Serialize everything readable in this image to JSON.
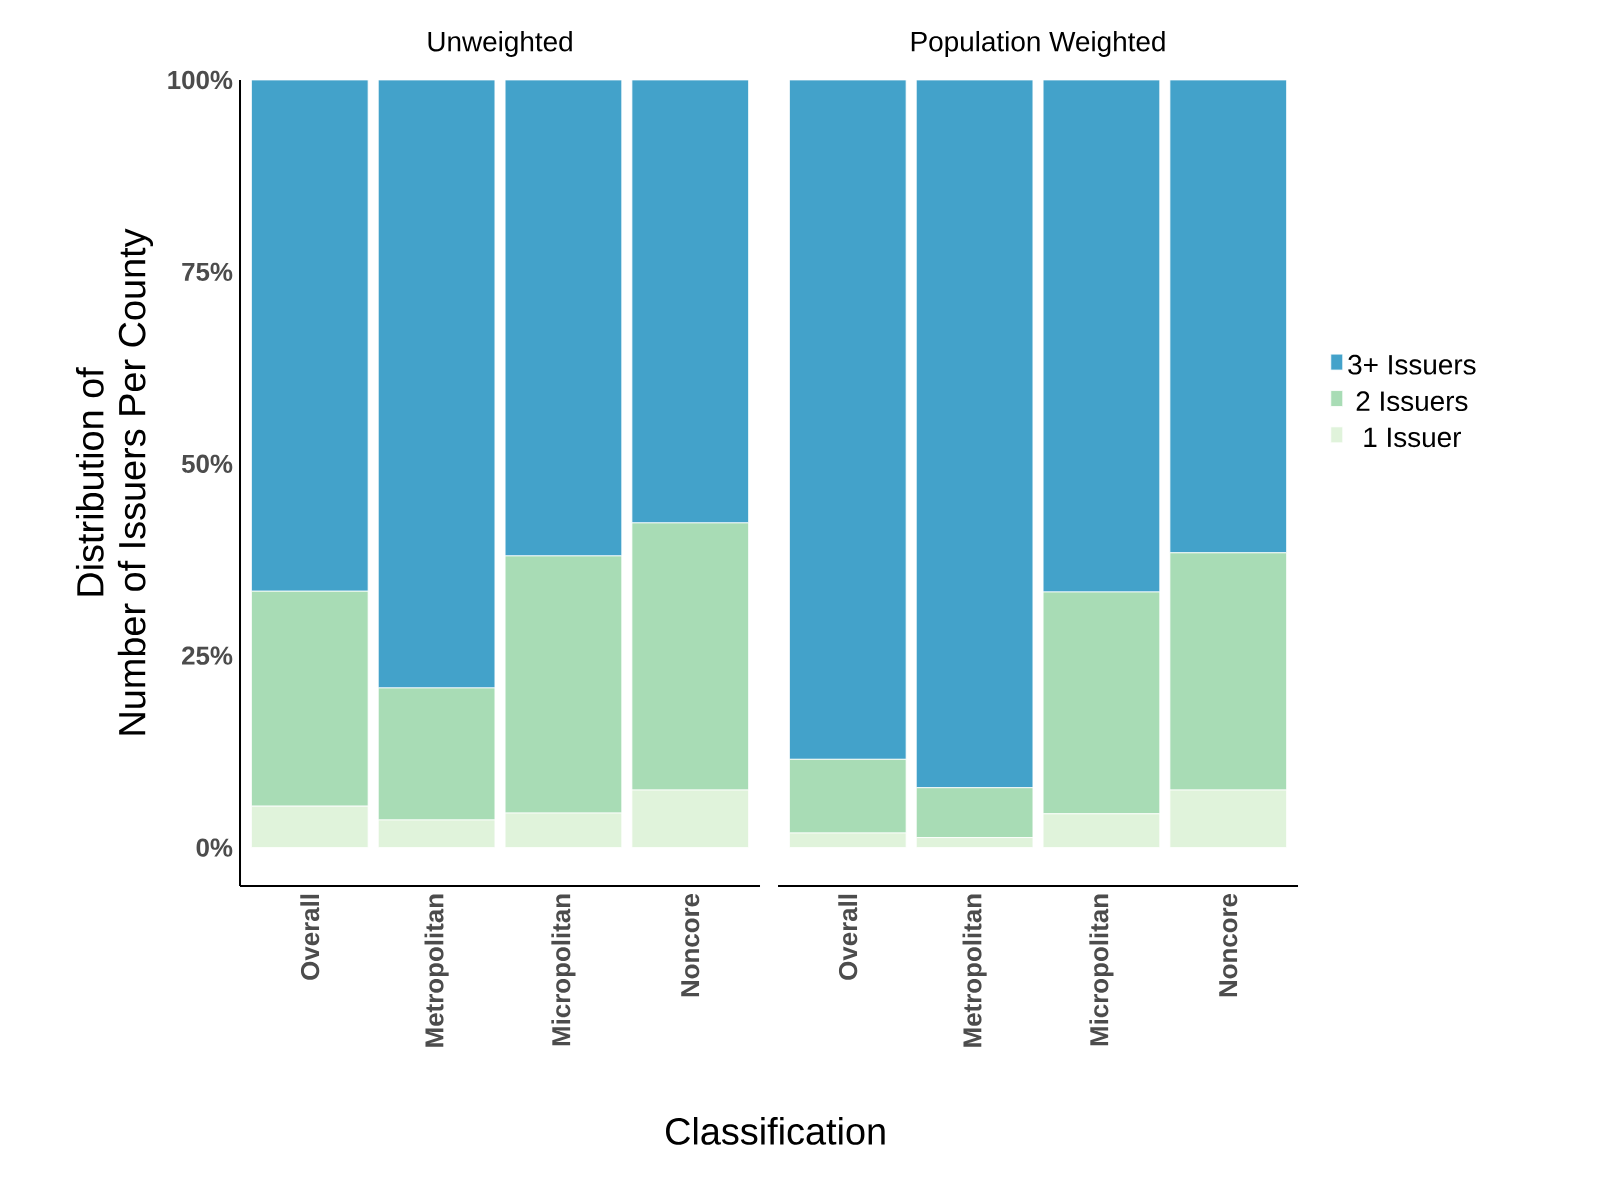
{
  "chart_data": [
    {
      "type": "bar",
      "stacked": true,
      "title": "Unweighted",
      "xlabel": "Classification",
      "ylabel": "Distribution of\nNumber of Issuers Per County",
      "categories": [
        "Overall",
        "Metropolitan",
        "Micropolitan",
        "Noncore"
      ],
      "ylim": [
        -5,
        100
      ],
      "yticks": [
        {
          "value": 0,
          "label": "0%"
        },
        {
          "value": 25,
          "label": "25%"
        },
        {
          "value": 50,
          "label": "50%"
        },
        {
          "value": 75,
          "label": "75%"
        },
        {
          "value": 100,
          "label": "100%"
        }
      ],
      "series": [
        {
          "color": "#e0f3db",
          "values": [
            5.4,
            3.6,
            4.5,
            7.5
          ]
        },
        {
          "color": "#a8dcb5",
          "values": [
            28.0,
            17.2,
            33.5,
            34.8
          ]
        },
        {
          "color": "#43a2ca",
          "values": [
            66.6,
            79.2,
            62.0,
            57.7
          ]
        }
      ]
    },
    {
      "type": "bar",
      "stacked": true,
      "title": "Population Weighted",
      "categories": [
        "Overall",
        "Metropolitan",
        "Micropolitan",
        "Noncore"
      ],
      "ylim": [
        -5,
        100
      ],
      "tick_labels": "x",
      "legend": "right",
      "series": [
        {
          "name": "1 Issuer",
          "color": "#e0f3db",
          "values": [
            1.9,
            1.3,
            4.4,
            7.5
          ]
        },
        {
          "name": "2 Issuers",
          "color": "#a8dcb5",
          "values": [
            9.6,
            6.5,
            28.9,
            30.9
          ]
        },
        {
          "name": "3+ Issuers",
          "color": "#43a2ca",
          "values": [
            88.5,
            92.2,
            66.7,
            61.6
          ]
        }
      ]
    }
  ]
}
